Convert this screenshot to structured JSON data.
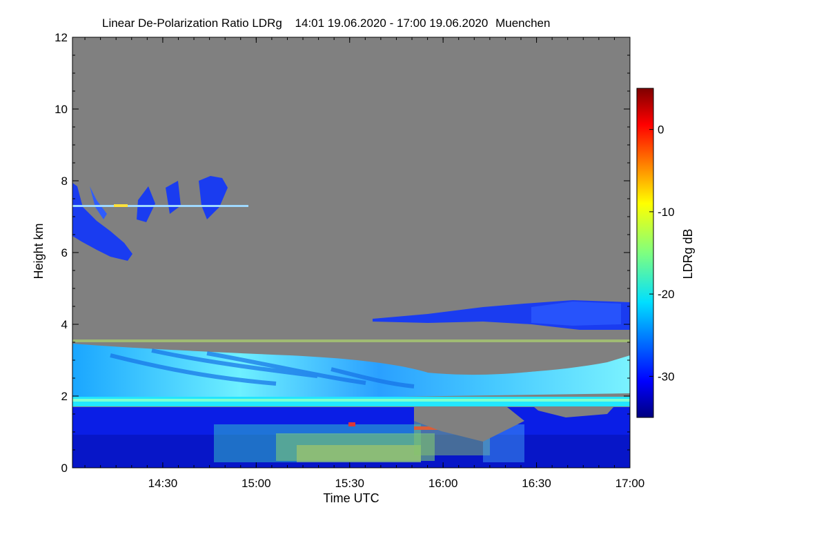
{
  "chart_data": {
    "type": "heatmap",
    "title": "Linear De-Polarization Ratio LDRg",
    "time_range_label": "14:01 19.06.2020 - 17:00 19.06.2020",
    "location": "Muenchen",
    "xlabel": "Time UTC",
    "ylabel": "Height km",
    "x_unit": "minutes since 00:00 UTC",
    "xlim": [
      841,
      1020
    ],
    "ylim": [
      0,
      12
    ],
    "x_ticks": [
      {
        "value": 870,
        "label": "14:30"
      },
      {
        "value": 900,
        "label": "15:00"
      },
      {
        "value": 930,
        "label": "15:30"
      },
      {
        "value": 960,
        "label": "16:00"
      },
      {
        "value": 990,
        "label": "16:30"
      },
      {
        "value": 1020,
        "label": "17:00"
      }
    ],
    "y_ticks": [
      {
        "value": 0,
        "label": "0"
      },
      {
        "value": 2,
        "label": "2"
      },
      {
        "value": 4,
        "label": "4"
      },
      {
        "value": 6,
        "label": "6"
      },
      {
        "value": 8,
        "label": "8"
      },
      {
        "value": 10,
        "label": "10"
      },
      {
        "value": 12,
        "label": "12"
      }
    ],
    "colorbar": {
      "label": "LDRg dB",
      "range": [
        -35,
        5
      ],
      "colormap": "jet",
      "ticks": [
        {
          "value": 0,
          "label": "0"
        },
        {
          "value": -10,
          "label": "-10"
        },
        {
          "value": -20,
          "label": "-20"
        },
        {
          "value": -30,
          "label": "-30"
        }
      ]
    },
    "background_color": "#808080",
    "features": [
      {
        "name": "aerosol-layer",
        "x": [
          841,
          1020
        ],
        "y": [
          0,
          1.75
        ],
        "ldr_db": -32
      },
      {
        "name": "residual-layer-top",
        "x": [
          841,
          1020
        ],
        "y": [
          1.75,
          2.0
        ],
        "ldr_db": -18
      },
      {
        "name": "cloud-base-band",
        "x": [
          841,
          1020
        ],
        "y": [
          2.0,
          3.5
        ],
        "ldr_db": -22
      },
      {
        "name": "cirrus-left",
        "x": [
          841,
          860
        ],
        "y": [
          5.8,
          8.0
        ],
        "ldr_db": -32
      },
      {
        "name": "cirrus-mid",
        "x": [
          860,
          893
        ],
        "y": [
          6.5,
          8.2
        ],
        "ldr_db": -32
      },
      {
        "name": "upper-cloud-right",
        "x": [
          935,
          1020
        ],
        "y": [
          3.8,
          4.6
        ],
        "ldr_db": -32
      }
    ]
  }
}
